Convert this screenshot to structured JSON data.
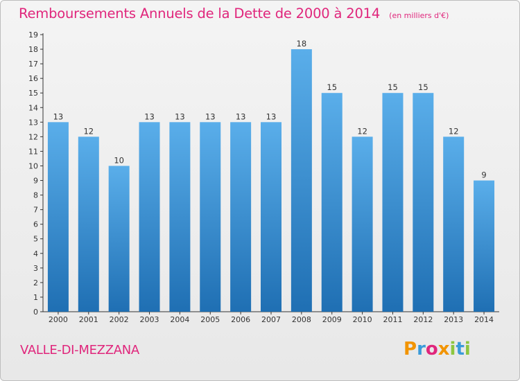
{
  "title": "Remboursements Annuels de la Dette de 2000 à 2014",
  "subtitle": "(en milliers d'€)",
  "commune": "VALLE-DI-MEZZANA",
  "logo": {
    "text": "Proxiti",
    "letters": [
      {
        "char": "P",
        "color": "#f29400"
      },
      {
        "char": "r",
        "color": "#3a9bd9"
      },
      {
        "char": "o",
        "color": "#e0267c"
      },
      {
        "char": "x",
        "color": "#f29400"
      },
      {
        "char": "i",
        "color": "#8dc63f"
      },
      {
        "char": "t",
        "color": "#3a9bd9"
      },
      {
        "char": "i",
        "color": "#8dc63f"
      }
    ]
  },
  "colors": {
    "title": "#e0267c",
    "bar_top": "#5aaeea",
    "bar_bottom": "#1f6fb3",
    "axis": "#333333"
  },
  "chart_data": {
    "type": "bar",
    "title": "Remboursements Annuels de la Dette de 2000 à 2014",
    "subtitle": "(en milliers d'€)",
    "categories": [
      "2000",
      "2001",
      "2002",
      "2003",
      "2004",
      "2005",
      "2006",
      "2007",
      "2008",
      "2009",
      "2010",
      "2011",
      "2012",
      "2013",
      "2014"
    ],
    "values": [
      13,
      12,
      10,
      13,
      13,
      13,
      13,
      13,
      18,
      15,
      12,
      15,
      15,
      12,
      9
    ],
    "xlabel": "",
    "ylabel": "",
    "ylim": [
      0,
      19
    ],
    "yticks": [
      0,
      1,
      2,
      3,
      4,
      5,
      6,
      7,
      8,
      9,
      10,
      11,
      12,
      13,
      14,
      15,
      16,
      17,
      18,
      19
    ],
    "grid": false,
    "legend": "none",
    "data_labels": true
  }
}
